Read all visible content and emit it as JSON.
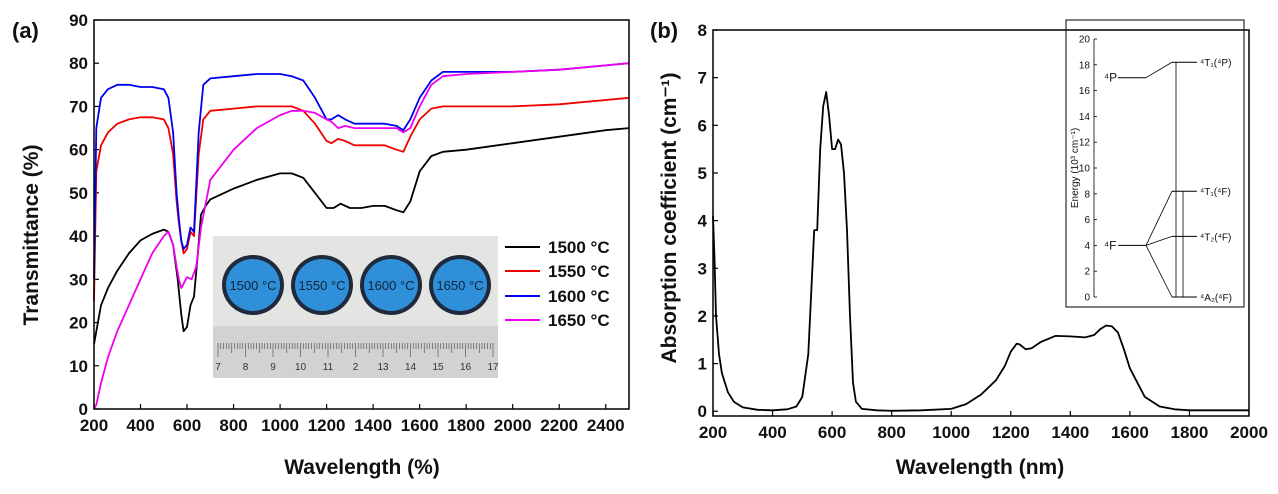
{
  "chart_data": [
    {
      "panel": "(a)",
      "type": "line",
      "xlabel": "Wavelength (%)",
      "ylabel": "Transmittance (%)",
      "xlim": [
        200,
        2500
      ],
      "ylim": [
        0,
        90
      ],
      "xticks": [
        200,
        400,
        600,
        800,
        1000,
        1200,
        1400,
        1600,
        1800,
        2000,
        2200,
        2400
      ],
      "yticks": [
        0,
        10,
        20,
        30,
        40,
        50,
        60,
        70,
        80,
        90
      ],
      "grid": false,
      "legend_position": "lower-right",
      "series": [
        {
          "name": "1500 °C",
          "color": "#000000",
          "x": [
            200,
            230,
            260,
            300,
            350,
            400,
            450,
            500,
            520,
            540,
            560,
            575,
            585,
            600,
            615,
            630,
            645,
            660,
            680,
            700,
            800,
            900,
            1000,
            1050,
            1100,
            1150,
            1200,
            1230,
            1260,
            1300,
            1350,
            1400,
            1450,
            1500,
            1530,
            1560,
            1600,
            1650,
            1700,
            1800,
            2000,
            2200,
            2400,
            2500
          ],
          "y": [
            15,
            24,
            28,
            32,
            36,
            39,
            40.5,
            41.5,
            41,
            38,
            30,
            22,
            18,
            19,
            24,
            26,
            35,
            45,
            47,
            48.5,
            51,
            53,
            54.5,
            54.5,
            53.5,
            50,
            46.5,
            46.5,
            47.5,
            46.5,
            46.5,
            47,
            47,
            46,
            45.5,
            48,
            55,
            58.5,
            59.5,
            60,
            61.5,
            63,
            64.5,
            65
          ]
        },
        {
          "name": "1550 °C",
          "color": "#ee0000",
          "x": [
            200,
            210,
            230,
            260,
            300,
            350,
            400,
            450,
            500,
            520,
            540,
            555,
            565,
            575,
            585,
            600,
            615,
            630,
            650,
            670,
            700,
            800,
            900,
            1000,
            1050,
            1100,
            1150,
            1200,
            1220,
            1250,
            1280,
            1320,
            1400,
            1450,
            1500,
            1530,
            1560,
            1600,
            1650,
            1700,
            1800,
            2000,
            2200,
            2400,
            2500
          ],
          "y": [
            25,
            55,
            61,
            64,
            66,
            67,
            67.5,
            67.5,
            67,
            65,
            59,
            48,
            43,
            39,
            36,
            37,
            41,
            40,
            59,
            67,
            69,
            69.5,
            70,
            70,
            70,
            69,
            66,
            62,
            61.5,
            62.5,
            62,
            61,
            61,
            61,
            60,
            59.5,
            63,
            67,
            69.5,
            70,
            70,
            70,
            70.5,
            71.5,
            72
          ]
        },
        {
          "name": "1600 °C",
          "color": "#0000ee",
          "x": [
            200,
            210,
            230,
            260,
            300,
            350,
            400,
            450,
            500,
            520,
            540,
            555,
            565,
            575,
            585,
            600,
            615,
            630,
            650,
            670,
            700,
            800,
            900,
            1000,
            1050,
            1100,
            1150,
            1200,
            1220,
            1250,
            1280,
            1320,
            1400,
            1450,
            1500,
            1530,
            1560,
            1600,
            1650,
            1700,
            1800,
            2000,
            2200,
            2400,
            2500
          ],
          "y": [
            30,
            65,
            72,
            74,
            75,
            75,
            74.5,
            74.5,
            74,
            72,
            64,
            50,
            44,
            39,
            37,
            38,
            42,
            41,
            64,
            75,
            76.5,
            77,
            77.5,
            77.5,
            77,
            76,
            72,
            67,
            67,
            68,
            67,
            66,
            66,
            66,
            65.5,
            64.5,
            67,
            72,
            76,
            78,
            78,
            78,
            78.5,
            79.5,
            80
          ]
        },
        {
          "name": "1650 °C",
          "color": "#ee00ee",
          "x": [
            200,
            210,
            230,
            260,
            300,
            350,
            400,
            450,
            500,
            520,
            540,
            555,
            565,
            575,
            585,
            600,
            620,
            640,
            660,
            700,
            800,
            900,
            1000,
            1050,
            1100,
            1150,
            1200,
            1220,
            1250,
            1280,
            1320,
            1400,
            1450,
            1500,
            1530,
            1560,
            1600,
            1650,
            1700,
            1800,
            2000,
            2200,
            2400,
            2500
          ],
          "y": [
            0,
            1,
            6,
            12,
            18,
            24,
            30,
            36,
            40,
            41,
            38,
            33,
            30,
            28,
            29,
            30.5,
            30,
            33,
            42,
            53,
            60,
            65,
            68,
            69,
            69,
            68.5,
            67,
            66.5,
            65,
            65.5,
            65,
            65,
            65,
            65,
            64,
            65,
            70,
            75,
            77,
            77.5,
            78,
            78.5,
            79.5,
            80
          ]
        }
      ],
      "inset_photo": {
        "disc_labels": [
          "1500 °C",
          "1550 °C",
          "1600 °C",
          "1650 °C"
        ],
        "ruler_labels": [
          "7",
          "8",
          "9",
          "10",
          "11",
          "2",
          "13",
          "14",
          "15",
          "16",
          "17"
        ]
      }
    },
    {
      "panel": "(b)",
      "type": "line",
      "xlabel": "Wavelength (nm)",
      "ylabel": "Absorption coefficient (cm⁻¹)",
      "xlim": [
        200,
        2000
      ],
      "ylim": [
        -0.1,
        8
      ],
      "xticks": [
        200,
        400,
        600,
        800,
        1000,
        1200,
        1400,
        1600,
        1800,
        2000
      ],
      "yticks": [
        0,
        1,
        2,
        3,
        4,
        5,
        6,
        7,
        8
      ],
      "grid": false,
      "series": [
        {
          "name": "",
          "color": "#000000",
          "x": [
            200,
            205,
            210,
            220,
            230,
            250,
            270,
            300,
            350,
            400,
            450,
            480,
            500,
            520,
            540,
            550,
            560,
            570,
            580,
            590,
            600,
            610,
            620,
            630,
            640,
            650,
            660,
            670,
            680,
            700,
            750,
            800,
            900,
            1000,
            1050,
            1100,
            1150,
            1180,
            1200,
            1220,
            1230,
            1250,
            1270,
            1300,
            1350,
            1400,
            1450,
            1480,
            1500,
            1520,
            1540,
            1560,
            1580,
            1600,
            1650,
            1700,
            1750,
            1800,
            2000
          ],
          "y": [
            4.1,
            3.2,
            2.0,
            1.2,
            0.8,
            0.4,
            0.2,
            0.08,
            0.03,
            0.02,
            0.04,
            0.1,
            0.3,
            1.2,
            3.8,
            3.8,
            5.5,
            6.4,
            6.7,
            6.2,
            5.5,
            5.5,
            5.7,
            5.6,
            5.0,
            3.8,
            2.0,
            0.6,
            0.2,
            0.05,
            0.02,
            0.01,
            0.02,
            0.05,
            0.15,
            0.35,
            0.65,
            0.95,
            1.25,
            1.42,
            1.4,
            1.3,
            1.32,
            1.45,
            1.58,
            1.57,
            1.55,
            1.6,
            1.72,
            1.8,
            1.78,
            1.65,
            1.3,
            0.9,
            0.3,
            0.1,
            0.04,
            0.02,
            0.02
          ]
        }
      ],
      "inset": {
        "ylabel": "Energy (10³ cm⁻¹)",
        "yticks": [
          "0",
          "2",
          "4",
          "6",
          "8",
          "10",
          "12",
          "14",
          "16",
          "18",
          "20"
        ],
        "free_ion_levels": [
          {
            "label": "⁴P",
            "energy": 17
          },
          {
            "label": "⁴F",
            "energy": 4
          }
        ],
        "crystal_field_levels": [
          {
            "label": "⁴T₁(⁴P)",
            "energy": 18.2
          },
          {
            "label": "⁴T₁(⁴F)",
            "energy": 8.2
          },
          {
            "label": "⁴T₂(⁴F)",
            "energy": 4.7
          },
          {
            "label": "⁴A₂(⁴F)",
            "energy": 0
          }
        ]
      }
    }
  ]
}
